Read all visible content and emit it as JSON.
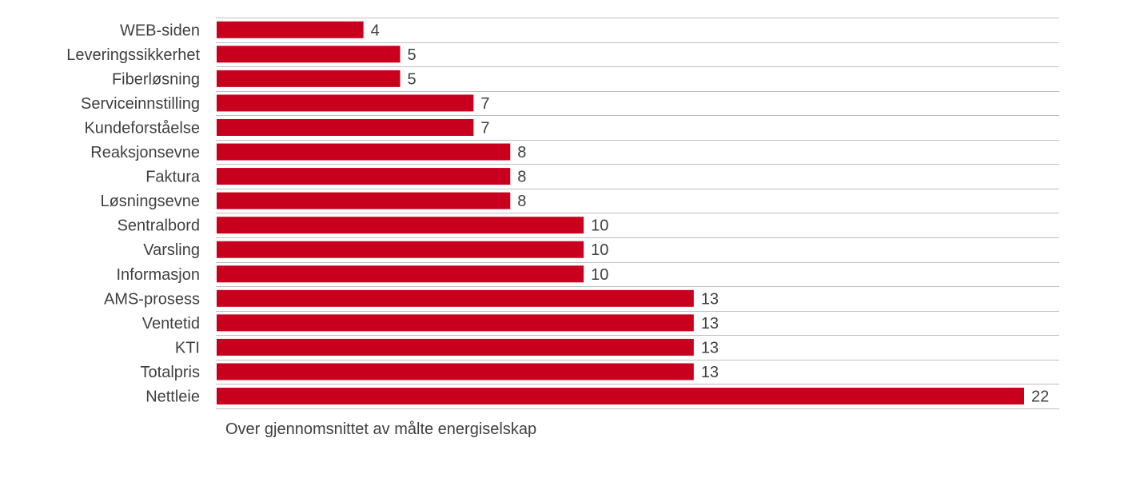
{
  "chart_data": {
    "type": "bar",
    "orientation": "horizontal",
    "categories": [
      "WEB-siden",
      "Leveringssikkerhet",
      "Fiberløsning",
      "Serviceinnstilling",
      "Kundeforståelse",
      "Reaksjonsevne",
      "Faktura",
      "Løsningsevne",
      "Sentralbord",
      "Varsling",
      "Informasjon",
      "AMS-prosess",
      "Ventetid",
      "KTI",
      "Totalpris",
      "Nettleie"
    ],
    "values": [
      4,
      5,
      5,
      7,
      7,
      8,
      8,
      8,
      10,
      10,
      10,
      13,
      13,
      13,
      13,
      22
    ],
    "xlabel": "Over gjennomsnittet av målte energiselskap",
    "ylabel": "",
    "title": "",
    "xlim": [
      0,
      23
    ],
    "bar_color": "#c8001e",
    "grid": "horizontal",
    "legend": "none"
  }
}
